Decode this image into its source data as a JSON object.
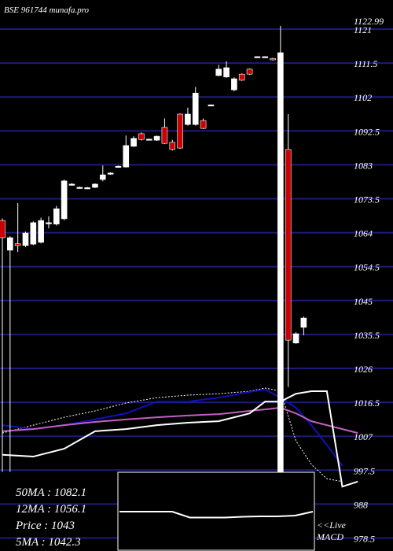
{
  "chart_data": {
    "type": "candlestick",
    "title": "BSE 961744 munafa.pro",
    "ylim": [
      974.86,
      1129.16
    ],
    "yticks": [
      1121,
      1111.5,
      1102,
      1092.5,
      1083,
      1073.5,
      1064,
      1054.5,
      1045,
      1035.5,
      1026,
      1016.5,
      1007,
      997.5,
      988,
      978.5
    ],
    "last_high": 1122.99,
    "grid": true,
    "grid_color": "#1c1c78",
    "up_color": "#ffffff",
    "down_color": "#cc0000",
    "x": [
      0,
      1,
      2,
      3,
      4,
      5,
      6,
      7,
      8,
      9,
      10,
      11,
      12,
      13,
      14,
      15,
      16,
      17,
      18,
      19,
      20,
      21,
      22,
      23,
      24,
      25,
      26,
      27,
      28,
      29,
      30,
      31,
      32,
      33,
      34,
      35,
      36,
      37,
      38,
      39
    ],
    "open": [
      1067.4,
      1059.1,
      1060.9,
      1060.4,
      1060.8,
      1061.3,
      1066.6,
      1066.4,
      1067.9,
      1077.4,
      1076.6,
      1076.4,
      1076.7,
      1078.9,
      1080.4,
      1082.4,
      1082.4,
      1088.2,
      1091.7,
      1090.0,
      1089.9,
      1093.5,
      1089.3,
      1097.2,
      1094.3,
      1094.3,
      1095.4,
      1099.7,
      1108.0,
      1107.6,
      1104.0,
      1108.4,
      1109.8,
      1113.2,
      1113.2,
      1112.8,
      996.9,
      1087.3,
      1033.1,
      1037.5
    ],
    "high": [
      1068.0,
      1063.0,
      1072.3,
      1064.3,
      1067.2,
      1068.2,
      1068.6,
      1071.5,
      1078.9,
      1077.9,
      1076.9,
      1076.8,
      1077.8,
      1082.8,
      1080.9,
      1082.8,
      1091.2,
      1091.0,
      1092.1,
      1090.3,
      1091.2,
      1096.0,
      1090.0,
      1097.4,
      1099.0,
      1104.8,
      1096.0,
      1099.9,
      1111.0,
      1112.0,
      1107.5,
      1108.6,
      1110.0,
      1113.4,
      1113.4,
      1113.0,
      1121.9,
      1097.2,
      1036.1,
      1040.5
    ],
    "low": [
      997.0,
      997.0,
      1058.6,
      1060.0,
      1060.5,
      1061.0,
      1065.2,
      1066.0,
      1067.5,
      1077.2,
      1076.5,
      1076.3,
      1076.5,
      1078.4,
      1080.2,
      1082.3,
      1082.2,
      1088.0,
      1089.8,
      1089.9,
      1089.7,
      1088.8,
      1087.0,
      1087.5,
      1094.0,
      1094.0,
      1093.0,
      1099.6,
      1107.8,
      1107.4,
      1103.6,
      1106.5,
      1108.2,
      1113.1,
      1113.1,
      1112.2,
      996.5,
      1020.8,
      1032.9,
      1035.3
    ],
    "close": [
      1062.6,
      1062.6,
      1060.4,
      1063.9,
      1066.8,
      1067.4,
      1066.8,
      1070.7,
      1078.5,
      1077.6,
      1076.7,
      1076.6,
      1077.6,
      1080.2,
      1080.7,
      1082.6,
      1088.4,
      1090.4,
      1090.1,
      1090.2,
      1091.0,
      1089.0,
      1087.3,
      1087.7,
      1097.2,
      1103.1,
      1093.2,
      1099.8,
      1109.8,
      1110.2,
      1107.1,
      1106.7,
      1108.4,
      1113.3,
      1113.3,
      1112.4,
      1114.4,
      1033.9,
      1035.7,
      1040.1
    ],
    "indicators": {
      "x": [
        0,
        4,
        8,
        12,
        16,
        20,
        24,
        28,
        32,
        34,
        36,
        38,
        40,
        42,
        44,
        46
      ],
      "series": [
        {
          "color": "#ffffff",
          "dash": true,
          "values": [
            1007.9,
            1010.1,
            1012.3,
            1014.1,
            1016.3,
            1017.8,
            1018.5,
            1018.9,
            1019.6,
            1020.5,
            1019.6,
            1005.7,
            999.1,
            995.1,
            994.3,
            null
          ]
        },
        {
          "color": "#1010c0",
          "dash": false,
          "values": [
            1010.1,
            1009.0,
            1010.1,
            1011.7,
            1013.4,
            1016.7,
            1016.7,
            1017.8,
            1019.4,
            1020.1,
            1017.8,
            1015.0,
            1010.1,
            1004.6,
            998.7,
            null
          ]
        },
        {
          "color": "#c060c0",
          "dash": false,
          "values": [
            1008.4,
            1009.0,
            1010.1,
            1011.0,
            1011.7,
            1012.3,
            1012.8,
            1013.2,
            1014.1,
            1014.5,
            1015.0,
            1013.4,
            1011.2,
            1010.1,
            1009.0,
            1007.9
          ]
        },
        {
          "color": "#ffffff",
          "dash": false,
          "values": [
            1001.8,
            1001.3,
            1003.5,
            1008.4,
            1009.0,
            1010.1,
            1010.8,
            1011.2,
            1013.4,
            1016.7,
            1016.7,
            1018.9,
            1019.6,
            1019.6,
            992.9,
            994.3
          ]
        }
      ]
    },
    "info": [
      "50MA : 1082.1",
      "12MA : 1056.1",
      "Price   : 1043",
      "5MA : 1042.3"
    ],
    "macd": {
      "label": [
        "<<Live",
        "MACD"
      ],
      "ylim": [
        -5,
        5
      ],
      "values": [
        0,
        0,
        0,
        0,
        -1.5,
        -1.5,
        -1.5,
        -1.3,
        -1.2,
        -1.2,
        -1.0,
        0
      ]
    }
  }
}
